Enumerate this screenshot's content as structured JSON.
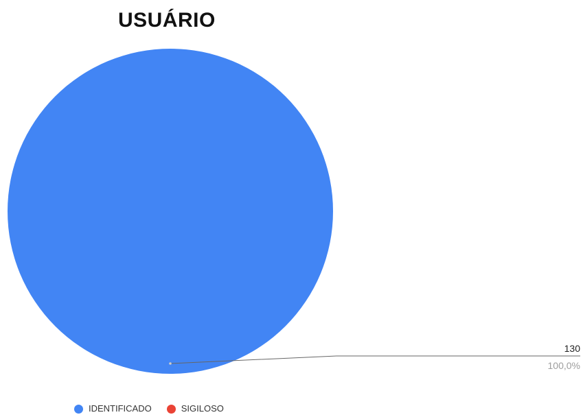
{
  "chart_data": {
    "type": "pie",
    "title": "USUÁRIO",
    "slices": [
      {
        "label": "IDENTIFICADO",
        "value": 130,
        "percent_label": "100,0%",
        "value_label": "130",
        "color": "#4285f4"
      },
      {
        "label": "SIGILOSO",
        "value": 0,
        "color": "#ea4335"
      }
    ],
    "legend_position": "bottom-left"
  }
}
